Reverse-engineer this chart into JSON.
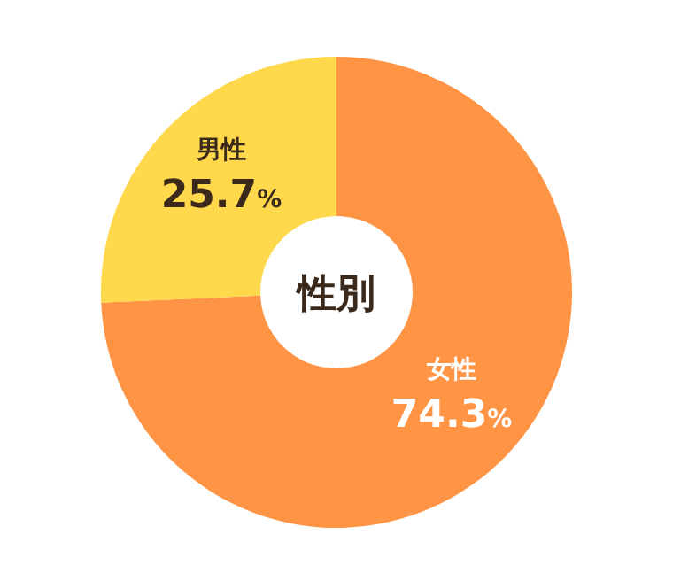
{
  "chart_data": {
    "type": "donut",
    "title": "性別",
    "categories": [
      "女性",
      "男性"
    ],
    "values": [
      74.3,
      25.7
    ],
    "colors": [
      "#ff9445",
      "#ffd84b"
    ],
    "value_labels": [
      "74.3%",
      "25.7%"
    ]
  }
}
